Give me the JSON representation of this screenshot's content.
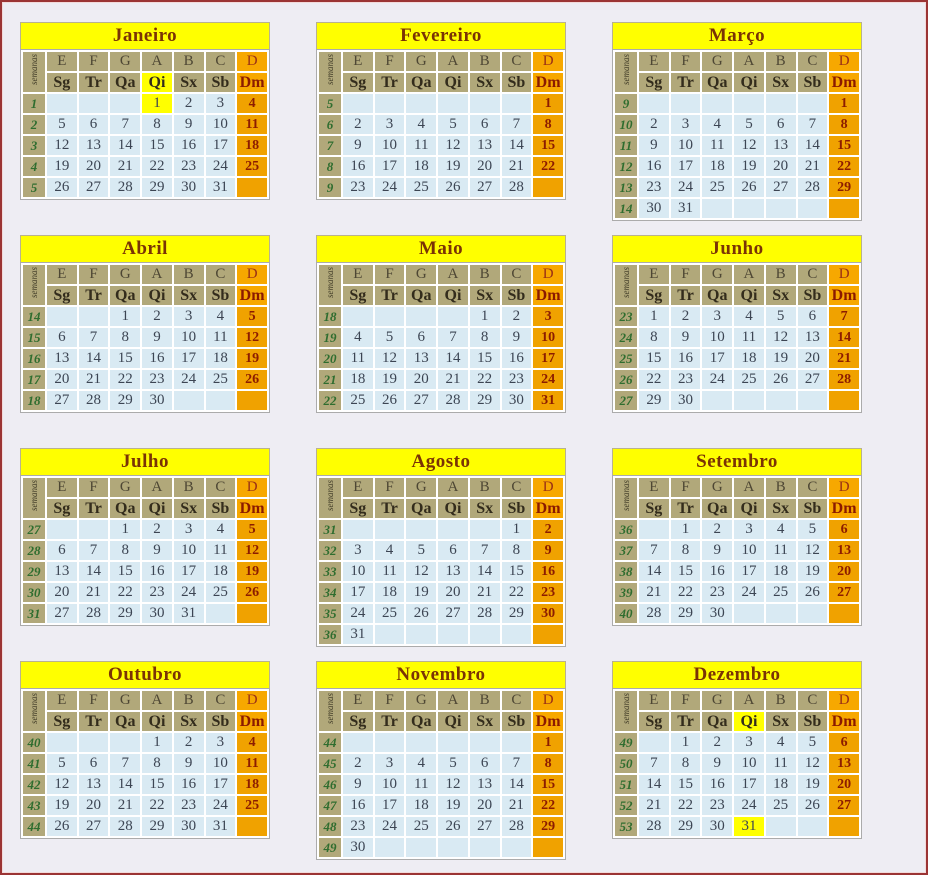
{
  "page": {
    "background_color": "#eeedf3",
    "border_color": "#9b3434"
  },
  "calendar": {
    "week_column_label": "semanas",
    "day_letters": [
      "E",
      "F",
      "G",
      "A",
      "B",
      "C",
      "D"
    ],
    "day_names": [
      "Sg",
      "Tr",
      "Qa",
      "Qi",
      "Sx",
      "Sb",
      "Dm"
    ],
    "colors": {
      "title_bg": "#ffff00",
      "title_text": "#7a3305",
      "header_bg": "#b1a87a",
      "sunday_header_bg": "#f7a800",
      "day_cell_bg": "#d9eaf3",
      "sunday_cell_bg": "#f0a200",
      "highlight_bg": "#ffff00",
      "week_number_text": "#2f6d2f",
      "sunday_text": "#8c1c00",
      "day_text": "#3c4553"
    },
    "months": [
      {
        "name": "Janeiro",
        "highlight_weekday_index": 3,
        "highlight_cell": {
          "week": 0,
          "day": 3
        },
        "weeks": [
          {
            "num": "1",
            "days": [
              "",
              "",
              "",
              "1",
              "2",
              "3",
              "4"
            ]
          },
          {
            "num": "2",
            "days": [
              "5",
              "6",
              "7",
              "8",
              "9",
              "10",
              "11"
            ]
          },
          {
            "num": "3",
            "days": [
              "12",
              "13",
              "14",
              "15",
              "16",
              "17",
              "18"
            ]
          },
          {
            "num": "4",
            "days": [
              "19",
              "20",
              "21",
              "22",
              "23",
              "24",
              "25"
            ]
          },
          {
            "num": "5",
            "days": [
              "26",
              "27",
              "28",
              "29",
              "30",
              "31",
              ""
            ]
          }
        ]
      },
      {
        "name": "Fevereiro",
        "highlight_weekday_index": null,
        "highlight_cell": null,
        "weeks": [
          {
            "num": "5",
            "days": [
              "",
              "",
              "",
              "",
              "",
              "",
              "1"
            ]
          },
          {
            "num": "6",
            "days": [
              "2",
              "3",
              "4",
              "5",
              "6",
              "7",
              "8"
            ]
          },
          {
            "num": "7",
            "days": [
              "9",
              "10",
              "11",
              "12",
              "13",
              "14",
              "15"
            ]
          },
          {
            "num": "8",
            "days": [
              "16",
              "17",
              "18",
              "19",
              "20",
              "21",
              "22"
            ]
          },
          {
            "num": "9",
            "days": [
              "23",
              "24",
              "25",
              "26",
              "27",
              "28",
              ""
            ]
          }
        ]
      },
      {
        "name": "Março",
        "highlight_weekday_index": null,
        "highlight_cell": null,
        "weeks": [
          {
            "num": "9",
            "days": [
              "",
              "",
              "",
              "",
              "",
              "",
              "1"
            ]
          },
          {
            "num": "10",
            "days": [
              "2",
              "3",
              "4",
              "5",
              "6",
              "7",
              "8"
            ]
          },
          {
            "num": "11",
            "days": [
              "9",
              "10",
              "11",
              "12",
              "13",
              "14",
              "15"
            ]
          },
          {
            "num": "12",
            "days": [
              "16",
              "17",
              "18",
              "19",
              "20",
              "21",
              "22"
            ]
          },
          {
            "num": "13",
            "days": [
              "23",
              "24",
              "25",
              "26",
              "27",
              "28",
              "29"
            ]
          },
          {
            "num": "14",
            "days": [
              "30",
              "31",
              "",
              "",
              "",
              "",
              ""
            ]
          }
        ]
      },
      {
        "name": "Abril",
        "highlight_weekday_index": null,
        "highlight_cell": null,
        "weeks": [
          {
            "num": "14",
            "days": [
              "",
              "",
              "1",
              "2",
              "3",
              "4",
              "5"
            ]
          },
          {
            "num": "15",
            "days": [
              "6",
              "7",
              "8",
              "9",
              "10",
              "11",
              "12"
            ]
          },
          {
            "num": "16",
            "days": [
              "13",
              "14",
              "15",
              "16",
              "17",
              "18",
              "19"
            ]
          },
          {
            "num": "17",
            "days": [
              "20",
              "21",
              "22",
              "23",
              "24",
              "25",
              "26"
            ]
          },
          {
            "num": "18",
            "days": [
              "27",
              "28",
              "29",
              "30",
              "",
              "",
              ""
            ]
          }
        ]
      },
      {
        "name": "Maio",
        "highlight_weekday_index": null,
        "highlight_cell": null,
        "weeks": [
          {
            "num": "18",
            "days": [
              "",
              "",
              "",
              "",
              "1",
              "2",
              "3"
            ]
          },
          {
            "num": "19",
            "days": [
              "4",
              "5",
              "6",
              "7",
              "8",
              "9",
              "10"
            ]
          },
          {
            "num": "20",
            "days": [
              "11",
              "12",
              "13",
              "14",
              "15",
              "16",
              "17"
            ]
          },
          {
            "num": "21",
            "days": [
              "18",
              "19",
              "20",
              "21",
              "22",
              "23",
              "24"
            ]
          },
          {
            "num": "22",
            "days": [
              "25",
              "26",
              "27",
              "28",
              "29",
              "30",
              "31"
            ]
          }
        ]
      },
      {
        "name": "Junho",
        "highlight_weekday_index": null,
        "highlight_cell": null,
        "weeks": [
          {
            "num": "23",
            "days": [
              "1",
              "2",
              "3",
              "4",
              "5",
              "6",
              "7"
            ]
          },
          {
            "num": "24",
            "days": [
              "8",
              "9",
              "10",
              "11",
              "12",
              "13",
              "14"
            ]
          },
          {
            "num": "25",
            "days": [
              "15",
              "16",
              "17",
              "18",
              "19",
              "20",
              "21"
            ]
          },
          {
            "num": "26",
            "days": [
              "22",
              "23",
              "24",
              "25",
              "26",
              "27",
              "28"
            ]
          },
          {
            "num": "27",
            "days": [
              "29",
              "30",
              "",
              "",
              "",
              "",
              ""
            ]
          }
        ]
      },
      {
        "name": "Julho",
        "highlight_weekday_index": null,
        "highlight_cell": null,
        "weeks": [
          {
            "num": "27",
            "days": [
              "",
              "",
              "1",
              "2",
              "3",
              "4",
              "5"
            ]
          },
          {
            "num": "28",
            "days": [
              "6",
              "7",
              "8",
              "9",
              "10",
              "11",
              "12"
            ]
          },
          {
            "num": "29",
            "days": [
              "13",
              "14",
              "15",
              "16",
              "17",
              "18",
              "19"
            ]
          },
          {
            "num": "30",
            "days": [
              "20",
              "21",
              "22",
              "23",
              "24",
              "25",
              "26"
            ]
          },
          {
            "num": "31",
            "days": [
              "27",
              "28",
              "29",
              "30",
              "31",
              "",
              ""
            ]
          }
        ]
      },
      {
        "name": "Agosto",
        "highlight_weekday_index": null,
        "highlight_cell": null,
        "weeks": [
          {
            "num": "31",
            "days": [
              "",
              "",
              "",
              "",
              "",
              "1",
              "2"
            ]
          },
          {
            "num": "32",
            "days": [
              "3",
              "4",
              "5",
              "6",
              "7",
              "8",
              "9"
            ]
          },
          {
            "num": "33",
            "days": [
              "10",
              "11",
              "12",
              "13",
              "14",
              "15",
              "16"
            ]
          },
          {
            "num": "34",
            "days": [
              "17",
              "18",
              "19",
              "20",
              "21",
              "22",
              "23"
            ]
          },
          {
            "num": "35",
            "days": [
              "24",
              "25",
              "26",
              "27",
              "28",
              "29",
              "30"
            ]
          },
          {
            "num": "36",
            "days": [
              "31",
              "",
              "",
              "",
              "",
              "",
              ""
            ]
          }
        ]
      },
      {
        "name": "Setembro",
        "highlight_weekday_index": null,
        "highlight_cell": null,
        "weeks": [
          {
            "num": "36",
            "days": [
              "",
              "1",
              "2",
              "3",
              "4",
              "5",
              "6"
            ]
          },
          {
            "num": "37",
            "days": [
              "7",
              "8",
              "9",
              "10",
              "11",
              "12",
              "13"
            ]
          },
          {
            "num": "38",
            "days": [
              "14",
              "15",
              "16",
              "17",
              "18",
              "19",
              "20"
            ]
          },
          {
            "num": "39",
            "days": [
              "21",
              "22",
              "23",
              "24",
              "25",
              "26",
              "27"
            ]
          },
          {
            "num": "40",
            "days": [
              "28",
              "29",
              "30",
              "",
              "",
              "",
              ""
            ]
          }
        ]
      },
      {
        "name": "Outubro",
        "highlight_weekday_index": null,
        "highlight_cell": null,
        "weeks": [
          {
            "num": "40",
            "days": [
              "",
              "",
              "",
              "1",
              "2",
              "3",
              "4"
            ]
          },
          {
            "num": "41",
            "days": [
              "5",
              "6",
              "7",
              "8",
              "9",
              "10",
              "11"
            ]
          },
          {
            "num": "42",
            "days": [
              "12",
              "13",
              "14",
              "15",
              "16",
              "17",
              "18"
            ]
          },
          {
            "num": "43",
            "days": [
              "19",
              "20",
              "21",
              "22",
              "23",
              "24",
              "25"
            ]
          },
          {
            "num": "44",
            "days": [
              "26",
              "27",
              "28",
              "29",
              "30",
              "31",
              ""
            ]
          }
        ]
      },
      {
        "name": "Novembro",
        "highlight_weekday_index": null,
        "highlight_cell": null,
        "weeks": [
          {
            "num": "44",
            "days": [
              "",
              "",
              "",
              "",
              "",
              "",
              "1"
            ]
          },
          {
            "num": "45",
            "days": [
              "2",
              "3",
              "4",
              "5",
              "6",
              "7",
              "8"
            ]
          },
          {
            "num": "46",
            "days": [
              "9",
              "10",
              "11",
              "12",
              "13",
              "14",
              "15"
            ]
          },
          {
            "num": "47",
            "days": [
              "16",
              "17",
              "18",
              "19",
              "20",
              "21",
              "22"
            ]
          },
          {
            "num": "48",
            "days": [
              "23",
              "24",
              "25",
              "26",
              "27",
              "28",
              "29"
            ]
          },
          {
            "num": "49",
            "days": [
              "30",
              "",
              "",
              "",
              "",
              "",
              ""
            ]
          }
        ]
      },
      {
        "name": "Dezembro",
        "highlight_weekday_index": 3,
        "highlight_cell": {
          "week": 4,
          "day": 3
        },
        "weeks": [
          {
            "num": "49",
            "days": [
              "",
              "1",
              "2",
              "3",
              "4",
              "5",
              "6"
            ]
          },
          {
            "num": "50",
            "days": [
              "7",
              "8",
              "9",
              "10",
              "11",
              "12",
              "13"
            ]
          },
          {
            "num": "51",
            "days": [
              "14",
              "15",
              "16",
              "17",
              "18",
              "19",
              "20"
            ]
          },
          {
            "num": "52",
            "days": [
              "21",
              "22",
              "23",
              "24",
              "25",
              "26",
              "27"
            ]
          },
          {
            "num": "53",
            "days": [
              "28",
              "29",
              "30",
              "31",
              "",
              "",
              ""
            ]
          }
        ]
      }
    ]
  }
}
